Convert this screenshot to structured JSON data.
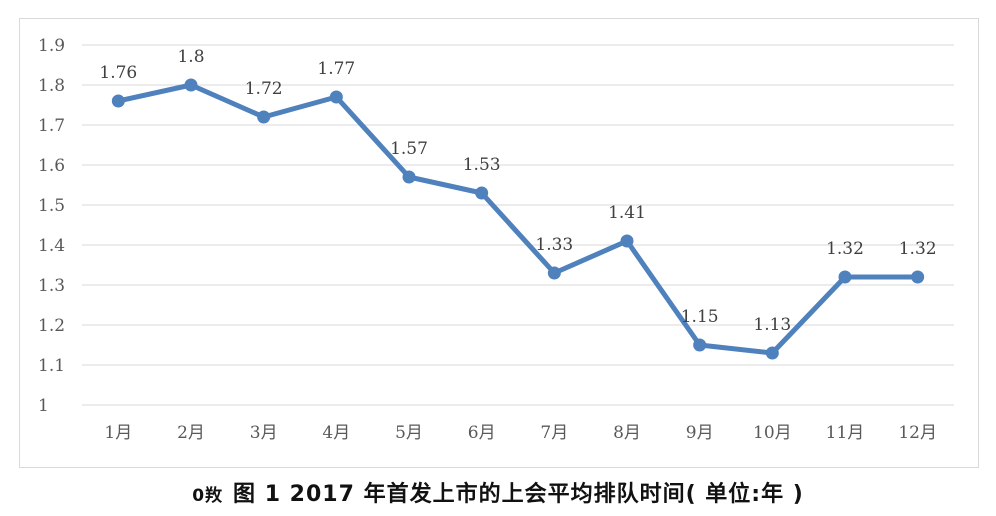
{
  "caption": {
    "prefix": "0䍩",
    "text": "图 1 2017 年首发上市的上会平均排队时间( 单位:年 )"
  },
  "colors": {
    "series": "#4f81bd",
    "grid": "#d9d9d9",
    "tick_text": "#595959"
  },
  "chart_data": {
    "type": "line",
    "categories": [
      "1月",
      "2月",
      "3月",
      "4月",
      "5月",
      "6月",
      "7月",
      "8月",
      "9月",
      "10月",
      "11月",
      "12月"
    ],
    "series": [
      {
        "values": [
          1.76,
          1.8,
          1.72,
          1.77,
          1.57,
          1.53,
          1.33,
          1.41,
          1.15,
          1.13,
          1.32,
          1.32
        ],
        "data_labels": [
          "1.76",
          "1.8",
          "1.72",
          "1.77",
          "1.57",
          "1.53",
          "1.33",
          "1.41",
          "1.15",
          "1.13",
          "1.32",
          "1.32"
        ]
      }
    ],
    "yticks": [
      "1",
      "1.1",
      "1.2",
      "1.3",
      "1.4",
      "1.5",
      "1.6",
      "1.7",
      "1.8",
      "1.9"
    ],
    "ylim": [
      1,
      1.9
    ],
    "grid": "horizontal",
    "legend": "none",
    "markers": "circle"
  }
}
